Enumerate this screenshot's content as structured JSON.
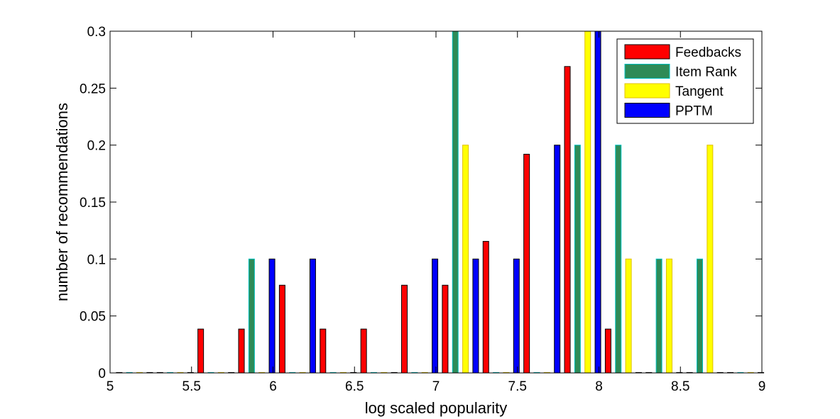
{
  "chart_data": {
    "type": "bar",
    "title": "",
    "xlabel": "log scaled popularity",
    "ylabel": "number of recommendations",
    "xlim": [
      5,
      9
    ],
    "ylim": [
      0,
      0.3
    ],
    "x_ticks": [
      "5",
      "5.5",
      "6",
      "6.5",
      "7",
      "7.5",
      "8",
      "8.5",
      "9"
    ],
    "y_ticks": [
      "0",
      "0.05",
      "0.1",
      "0.15",
      "0.2",
      "0.25",
      "0.3"
    ],
    "grid": false,
    "legend_position": "top-right",
    "group_centers": [
      5.15,
      5.4,
      5.65,
      5.9,
      6.15,
      6.4,
      6.65,
      6.9,
      7.15,
      7.4,
      7.65,
      7.9,
      8.15,
      8.4,
      8.65,
      8.9
    ],
    "series": [
      {
        "name": "Feedbacks",
        "color": "#ff0000",
        "edge": "#000000",
        "values": [
          0,
          0,
          0.0385,
          0.0385,
          0.077,
          0.0385,
          0.0385,
          0.077,
          0.077,
          0.1155,
          0.192,
          0.269,
          0.0385,
          0,
          0,
          0
        ]
      },
      {
        "name": "Item Rank",
        "color": "#2e8b57",
        "edge": "#00c0c0",
        "values": [
          0,
          0,
          0,
          0.1,
          0,
          0,
          0,
          0,
          0.3,
          0,
          0,
          0.2,
          0.2,
          0.1,
          0.1,
          0
        ]
      },
      {
        "name": "Tangent",
        "color": "#ffff00",
        "edge": "#e0c000",
        "values": [
          0,
          0,
          0,
          0,
          0,
          0,
          0,
          0,
          0.2,
          0,
          0,
          0.3,
          0.1,
          0.1,
          0.2,
          0
        ]
      },
      {
        "name": "PPTM",
        "color": "#0000ff",
        "edge": "#000000",
        "values": [
          0,
          0,
          0,
          0.1,
          0.1,
          0,
          0,
          0.1,
          0.1,
          0.1,
          0.2,
          0.3,
          0,
          0,
          0,
          0
        ]
      }
    ]
  }
}
